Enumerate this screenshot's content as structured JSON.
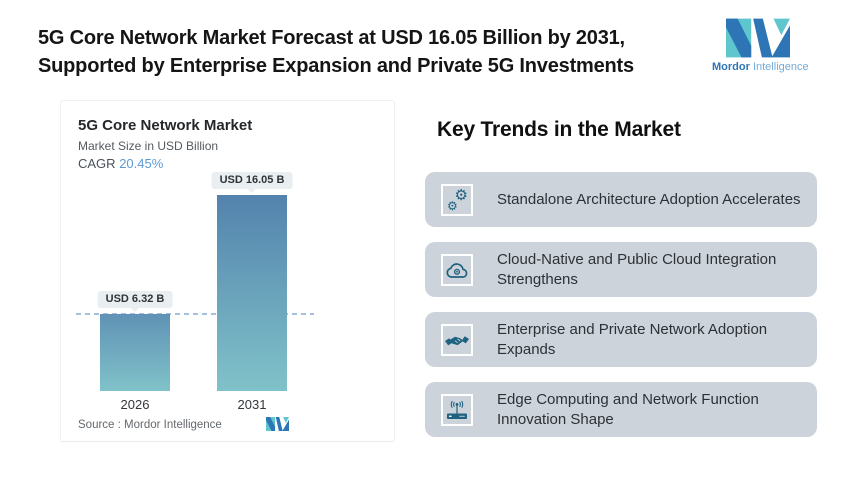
{
  "header": {
    "title_line1": "5G Core Network Market Forecast at USD 16.05 Billion by 2031,",
    "title_line2": "Supported by Enterprise Expansion and Private 5G Investments"
  },
  "logo": {
    "brand_bold": "Mordor",
    "brand_light": "Intelligence",
    "color_dark_blue": "#2E75B6",
    "color_teal": "#5FC6CE"
  },
  "chart": {
    "title": "5G Core Network Market",
    "subtitle": "Market Size in USD Billion",
    "cagr_label": "CAGR",
    "cagr_value": "20.45%",
    "cagr_value_color": "#5B9BD5",
    "source_label": "Source :",
    "source_value": "Mordor Intelligence",
    "bar_gradient_top": "#5383AD",
    "bar_gradient_bottom": "#80C2C9",
    "dashed_line_color": "#A3C1DC"
  },
  "chart_data": {
    "type": "bar",
    "title": "5G Core Network Market",
    "ylabel": "Market Size in USD Billion",
    "categories": [
      "2026",
      "2031"
    ],
    "values": [
      6.32,
      16.05
    ],
    "value_labels": [
      "USD 6.32 B",
      "USD 16.05 B"
    ],
    "ylim": [
      0,
      16.05
    ],
    "grid": false,
    "legend": false,
    "annotations": {
      "cagr": "20.45%",
      "dashed_reference_line_at_value": 6.32
    }
  },
  "trends": {
    "heading": "Key Trends in the Market",
    "box_color": "#CDD3DA",
    "icon_color": "#1E6280",
    "items": [
      {
        "icon": "gears-icon",
        "text": "Standalone Architecture Adoption Accelerates"
      },
      {
        "icon": "cloud-sync-icon",
        "text": "Cloud-Native and Public Cloud Integration Strengthens"
      },
      {
        "icon": "handshake-icon",
        "text": "Enterprise and Private Network Adoption Expands"
      },
      {
        "icon": "edge-router-icon",
        "text": "Edge Computing and Network Function Innovation Shape"
      }
    ]
  }
}
